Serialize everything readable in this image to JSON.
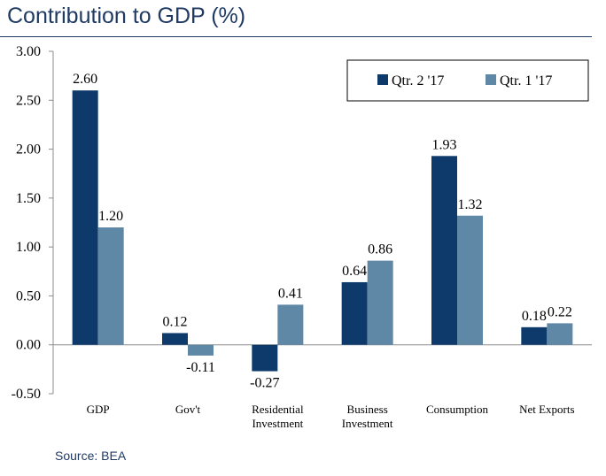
{
  "title": "Contribution to GDP (%)",
  "source": "Source: BEA",
  "chart_data": {
    "type": "bar",
    "categories": [
      [
        "GDP"
      ],
      [
        "Gov't"
      ],
      [
        "Residential",
        "Investment"
      ],
      [
        "Business",
        "Investment"
      ],
      [
        "Consumption"
      ],
      [
        "Net Exports"
      ]
    ],
    "series": [
      {
        "name": "Qtr. 2 '17",
        "color": "#0e3a6b",
        "values": [
          2.6,
          0.12,
          -0.27,
          0.64,
          1.93,
          0.18
        ]
      },
      {
        "name": "Qtr. 1 '17",
        "color": "#5f88a6",
        "values": [
          1.2,
          -0.11,
          0.41,
          0.86,
          1.32,
          0.22
        ]
      }
    ],
    "data_labels": [
      [
        "2.60",
        "0.12",
        "-0.27",
        "0.64",
        "1.93",
        "0.18"
      ],
      [
        "1.20",
        "-0.11",
        "0.41",
        "0.86",
        "1.32",
        "0.22"
      ]
    ],
    "yticks": [
      "3.00",
      "2.50",
      "2.00",
      "1.50",
      "1.00",
      "0.50",
      "0.00",
      "-0.50"
    ],
    "ylim": [
      -0.5,
      3.0
    ],
    "grid": false,
    "legend_position": "top-right"
  }
}
